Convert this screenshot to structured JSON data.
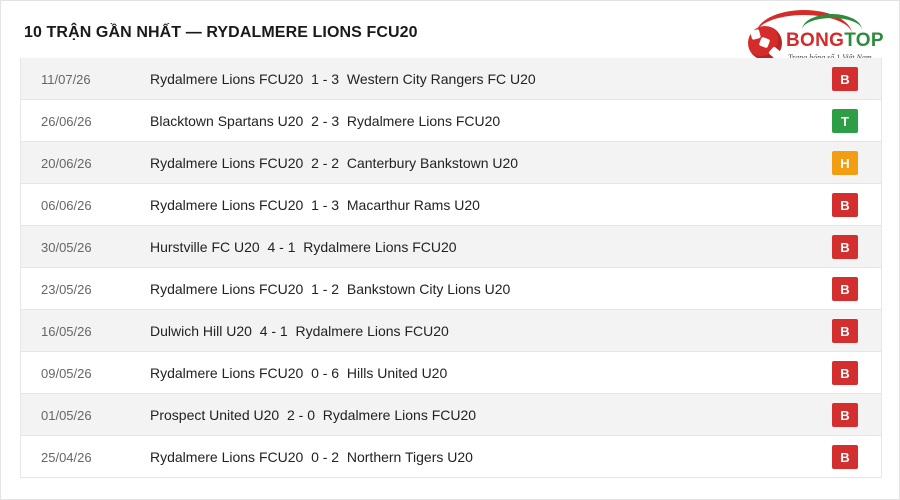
{
  "title": "10 TRẬN GẦN NHẤT — RYDALMERE LIONS FCU20",
  "logo": {
    "brand_part1": "BONG",
    "brand_part2": "TOP",
    "tagline": "Trang bóng số 1 Việt Nam"
  },
  "result_colors": {
    "B": "#d32f2f",
    "T": "#2e9e46",
    "H": "#f29d12"
  },
  "matches": [
    {
      "date": "11/07/26",
      "home": "Rydalmere Lions FCU20",
      "score": "1 - 3",
      "away": "Western City Rangers FC U20",
      "result": "B"
    },
    {
      "date": "26/06/26",
      "home": "Blacktown Spartans U20",
      "score": "2 - 3",
      "away": "Rydalmere Lions FCU20",
      "result": "T"
    },
    {
      "date": "20/06/26",
      "home": "Rydalmere Lions FCU20",
      "score": "2 - 2",
      "away": "Canterbury Bankstown U20",
      "result": "H"
    },
    {
      "date": "06/06/26",
      "home": "Rydalmere Lions FCU20",
      "score": "1 - 3",
      "away": "Macarthur Rams U20",
      "result": "B"
    },
    {
      "date": "30/05/26",
      "home": "Hurstville FC U20",
      "score": "4 - 1",
      "away": "Rydalmere Lions FCU20",
      "result": "B"
    },
    {
      "date": "23/05/26",
      "home": "Rydalmere Lions FCU20",
      "score": "1 - 2",
      "away": "Bankstown City Lions U20",
      "result": "B"
    },
    {
      "date": "16/05/26",
      "home": "Dulwich Hill U20",
      "score": "4 - 1",
      "away": "Rydalmere Lions FCU20",
      "result": "B"
    },
    {
      "date": "09/05/26",
      "home": "Rydalmere Lions FCU20",
      "score": "0 - 6",
      "away": "Hills United U20",
      "result": "B"
    },
    {
      "date": "01/05/26",
      "home": "Prospect United U20",
      "score": "2 - 0",
      "away": "Rydalmere Lions FCU20",
      "result": "B"
    },
    {
      "date": "25/04/26",
      "home": "Rydalmere Lions FCU20",
      "score": "0 - 2",
      "away": "Northern Tigers U20",
      "result": "B"
    }
  ]
}
